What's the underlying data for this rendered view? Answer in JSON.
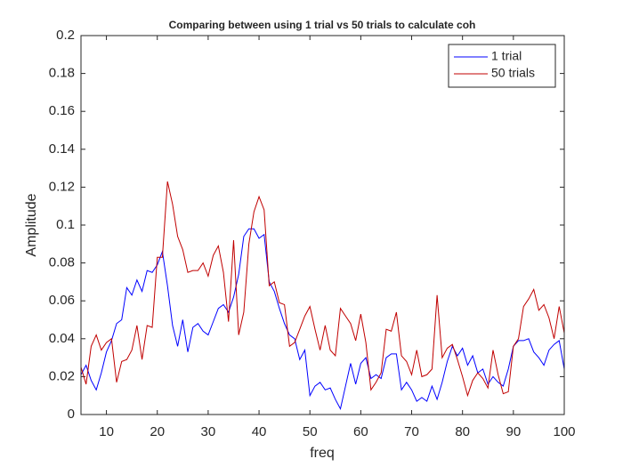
{
  "chart_data": {
    "type": "line",
    "title": "Comparing between using 1 trial vs 50 trials to calculate coh",
    "xlabel": "freq",
    "ylabel": "Amplitude",
    "x": [
      5,
      6,
      7,
      8,
      9,
      10,
      11,
      12,
      13,
      14,
      15,
      16,
      17,
      18,
      19,
      20,
      21,
      22,
      23,
      24,
      25,
      26,
      27,
      28,
      29,
      30,
      31,
      32,
      33,
      34,
      35,
      36,
      37,
      38,
      39,
      40,
      41,
      42,
      43,
      44,
      45,
      46,
      47,
      48,
      49,
      50,
      51,
      52,
      53,
      54,
      55,
      56,
      57,
      58,
      59,
      60,
      61,
      62,
      63,
      64,
      65,
      66,
      67,
      68,
      69,
      70,
      71,
      72,
      73,
      74,
      75,
      76,
      77,
      78,
      79,
      80,
      81,
      82,
      83,
      84,
      85,
      86,
      87,
      88,
      89,
      90,
      91,
      92,
      93,
      94,
      95,
      96,
      97,
      98,
      99,
      100
    ],
    "series": [
      {
        "name": "1 trial",
        "color": "#0000ff",
        "values": [
          0.021,
          0.026,
          0.018,
          0.013,
          0.022,
          0.033,
          0.039,
          0.048,
          0.05,
          0.067,
          0.063,
          0.071,
          0.065,
          0.076,
          0.075,
          0.079,
          0.086,
          0.068,
          0.047,
          0.036,
          0.05,
          0.033,
          0.046,
          0.048,
          0.044,
          0.042,
          0.049,
          0.056,
          0.058,
          0.054,
          0.062,
          0.074,
          0.094,
          0.098,
          0.098,
          0.093,
          0.095,
          0.07,
          0.065,
          0.056,
          0.048,
          0.042,
          0.04,
          0.029,
          0.034,
          0.01,
          0.015,
          0.017,
          0.013,
          0.014,
          0.008,
          0.003,
          0.015,
          0.027,
          0.016,
          0.027,
          0.03,
          0.019,
          0.021,
          0.019,
          0.03,
          0.032,
          0.032,
          0.013,
          0.017,
          0.013,
          0.007,
          0.009,
          0.007,
          0.015,
          0.008,
          0.017,
          0.028,
          0.036,
          0.031,
          0.035,
          0.026,
          0.031,
          0.022,
          0.024,
          0.016,
          0.02,
          0.017,
          0.015,
          0.024,
          0.036,
          0.039,
          0.039,
          0.04,
          0.033,
          0.03,
          0.026,
          0.034,
          0.037,
          0.039,
          0.024
        ]
      },
      {
        "name": "50 trials",
        "color": "#c00000",
        "values": [
          0.025,
          0.016,
          0.036,
          0.042,
          0.034,
          0.038,
          0.04,
          0.017,
          0.028,
          0.029,
          0.034,
          0.047,
          0.029,
          0.047,
          0.046,
          0.083,
          0.083,
          0.123,
          0.111,
          0.094,
          0.087,
          0.075,
          0.076,
          0.076,
          0.08,
          0.073,
          0.084,
          0.089,
          0.075,
          0.049,
          0.092,
          0.042,
          0.054,
          0.09,
          0.107,
          0.115,
          0.108,
          0.068,
          0.07,
          0.059,
          0.058,
          0.036,
          0.038,
          0.045,
          0.052,
          0.057,
          0.045,
          0.034,
          0.047,
          0.034,
          0.031,
          0.056,
          0.052,
          0.048,
          0.039,
          0.053,
          0.038,
          0.013,
          0.017,
          0.022,
          0.045,
          0.044,
          0.054,
          0.031,
          0.028,
          0.021,
          0.034,
          0.02,
          0.021,
          0.024,
          0.063,
          0.03,
          0.035,
          0.037,
          0.029,
          0.02,
          0.01,
          0.018,
          0.022,
          0.019,
          0.014,
          0.034,
          0.021,
          0.011,
          0.012,
          0.036,
          0.04,
          0.057,
          0.061,
          0.066,
          0.055,
          0.058,
          0.051,
          0.04,
          0.057,
          0.043
        ]
      }
    ],
    "xlim": [
      5,
      100
    ],
    "xticks": [
      10,
      20,
      30,
      40,
      50,
      60,
      70,
      80,
      90,
      100
    ],
    "ylim": [
      0,
      0.2
    ],
    "yticks": [
      0,
      0.02,
      0.04,
      0.06,
      0.08,
      0.1,
      0.12,
      0.14,
      0.16,
      0.18,
      0.2
    ],
    "grid": false,
    "legend": "northeast"
  }
}
